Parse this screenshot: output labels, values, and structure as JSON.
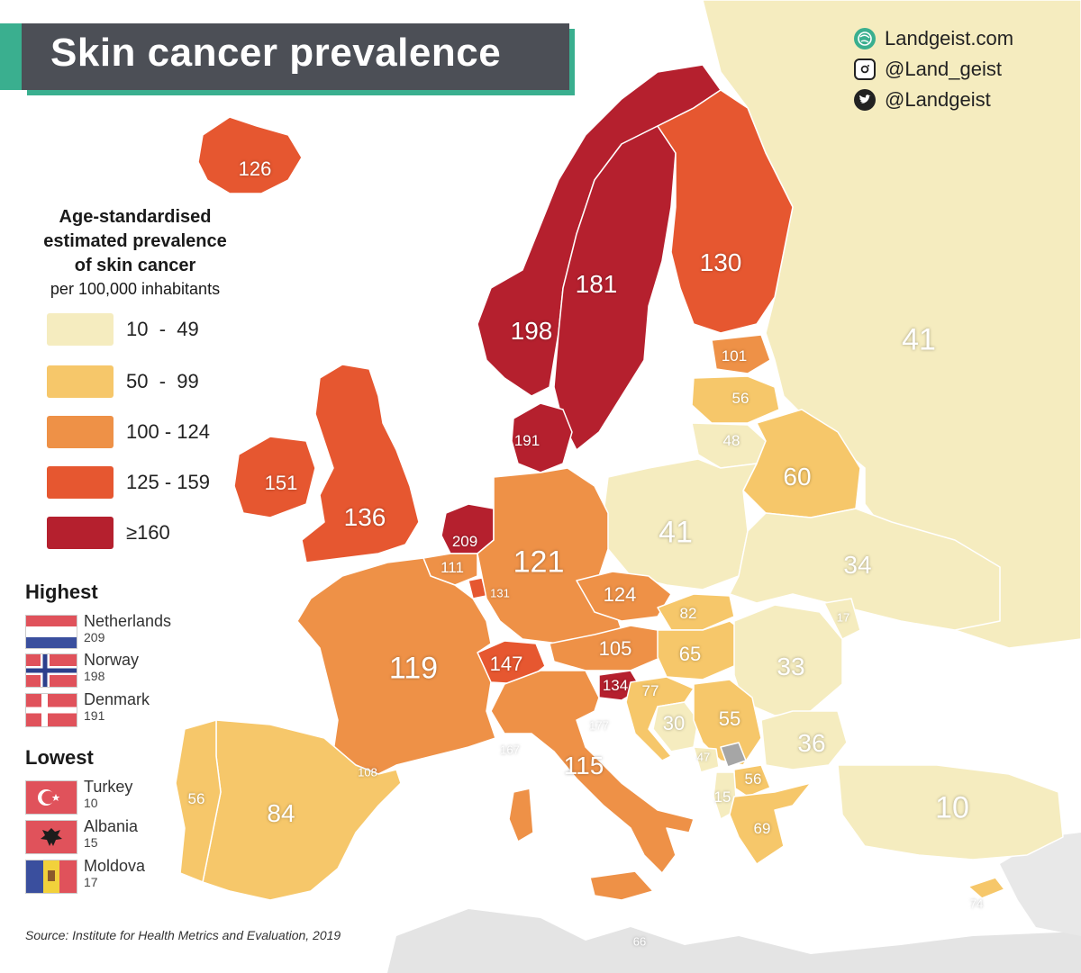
{
  "title": "Skin cancer prevalence",
  "social": [
    {
      "icon": "globe-icon",
      "text": "Landgeist.com"
    },
    {
      "icon": "instagram-icon",
      "text": "@Land_geist"
    },
    {
      "icon": "twitter-icon",
      "text": "@Landgeist"
    }
  ],
  "legend": {
    "title_line1": "Age-standardised",
    "title_line2": "estimated prevalence",
    "title_line3": "of skin cancer",
    "subtitle": "per 100,000 inhabitants",
    "classes": [
      {
        "label": "10  -  49",
        "color": "#f5ecbf"
      },
      {
        "label": "50  -  99",
        "color": "#f6c76a"
      },
      {
        "label": "100 - 124",
        "color": "#ee9147"
      },
      {
        "label": "125 - 159",
        "color": "#e65730"
      },
      {
        "label": "≥160",
        "color": "#b5202e"
      }
    ]
  },
  "highest": {
    "heading": "Highest",
    "items": [
      {
        "name": "Netherlands",
        "value": "209"
      },
      {
        "name": "Norway",
        "value": "198"
      },
      {
        "name": "Denmark",
        "value": "191"
      }
    ]
  },
  "lowest": {
    "heading": "Lowest",
    "items": [
      {
        "name": "Turkey",
        "value": "10"
      },
      {
        "name": "Albania",
        "value": "15"
      },
      {
        "name": "Moldova",
        "value": "17"
      }
    ]
  },
  "source": "Source: Institute for Health Metrics and Evaluation, 2019",
  "map_values": {
    "iceland": "126",
    "norway": "198",
    "sweden": "181",
    "finland": "130",
    "russia": "41",
    "estonia": "101",
    "latvia": "56",
    "lithuania": "48",
    "belarus": "60",
    "denmark": "191",
    "ireland": "151",
    "uk": "136",
    "netherlands": "209",
    "belgium": "111",
    "luxembourg": "131",
    "germany": "121",
    "poland": "41",
    "ukraine": "34",
    "moldova": "17",
    "czechia": "124",
    "slovakia": "82",
    "austria": "105",
    "hungary": "65",
    "romania": "33",
    "switzerland": "147",
    "slovenia": "134",
    "croatia": "77",
    "bosnia": "30",
    "serbia": "55",
    "montenegro": "47",
    "bulgaria": "36",
    "north_macedonia": "56",
    "albania": "15",
    "greece": "69",
    "turkey": "10",
    "cyprus": "74",
    "france": "119",
    "monaco": "167",
    "san_marino": "177",
    "italy": "115",
    "andorra": "108",
    "portugal": "56",
    "spain": "84",
    "malta": "66"
  }
}
